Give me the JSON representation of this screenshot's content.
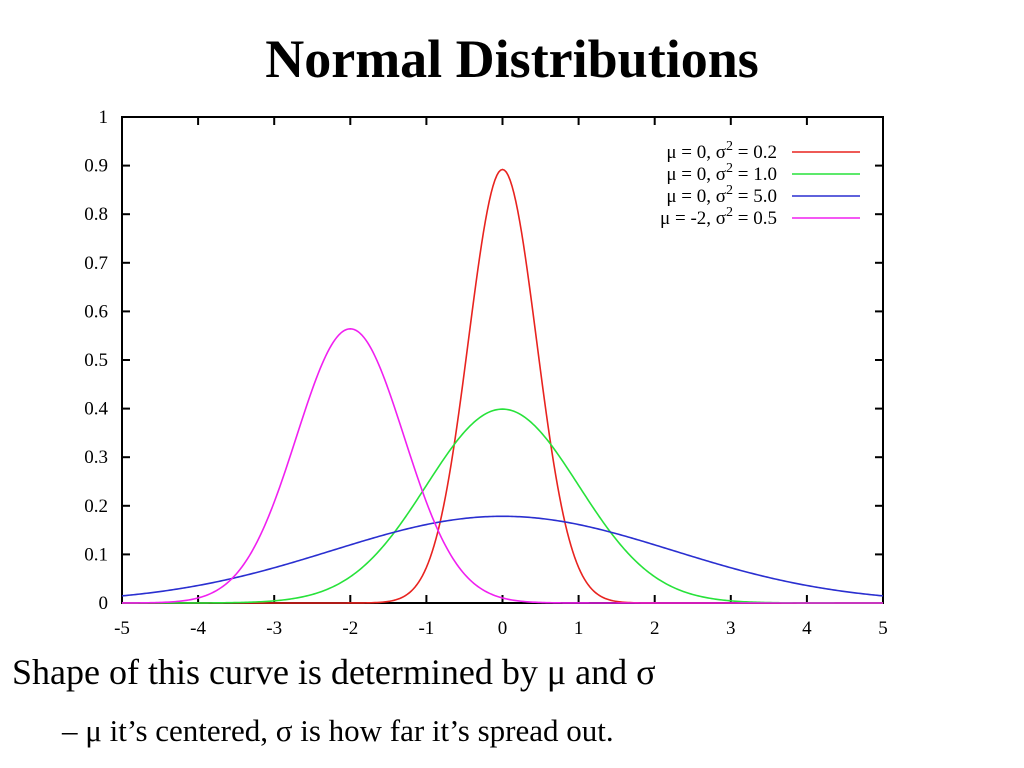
{
  "slide": {
    "title": "Normal Distributions",
    "bullet_main": "Shape of this curve is determined by μ and σ",
    "bullet_sub": "– μ it’s centered, σ is how far it’s spread out."
  },
  "chart_data": {
    "type": "line",
    "title": "",
    "xlabel": "",
    "ylabel": "",
    "xlim": [
      -5,
      5
    ],
    "ylim": [
      0,
      1
    ],
    "x_ticks": [
      "-5",
      "-4",
      "-3",
      "-2",
      "-1",
      "0",
      "1",
      "2",
      "3",
      "4",
      "5"
    ],
    "y_ticks": [
      "0",
      "0.1",
      "0.2",
      "0.3",
      "0.4",
      "0.5",
      "0.6",
      "0.7",
      "0.8",
      "0.9",
      "1"
    ],
    "grid": false,
    "legend_position": "top-right",
    "series": [
      {
        "name_main": "μ =  0, σ",
        "name_sup": "2",
        "name_tail": " = 0.2",
        "mu": 0,
        "sigma2": 0.2,
        "color": "#e8231f",
        "x": [
          -5,
          -4.5,
          -4,
          -3.5,
          -3,
          -2.5,
          -2,
          -1.5,
          -1,
          -0.5,
          0,
          0.5,
          1,
          1.5,
          2,
          2.5,
          3,
          3.5,
          4,
          4.5,
          5
        ],
        "y": [
          0,
          0,
          0,
          0,
          0,
          0,
          0,
          0.0003,
          0.0731,
          0.4849,
          0.8921,
          0.4849,
          0.0731,
          0.0003,
          0,
          0,
          0,
          0,
          0,
          0,
          0
        ]
      },
      {
        "name_main": "μ =  0, σ",
        "name_sup": "2",
        "name_tail": " = 1.0",
        "mu": 0,
        "sigma2": 1.0,
        "color": "#27e23a",
        "x": [
          -5,
          -4.5,
          -4,
          -3.5,
          -3,
          -2.5,
          -2,
          -1.5,
          -1,
          -0.5,
          0,
          0.5,
          1,
          1.5,
          2,
          2.5,
          3,
          3.5,
          4,
          4.5,
          5
        ],
        "y": [
          0,
          0,
          0.0001,
          0.0009,
          0.0044,
          0.0175,
          0.054,
          0.1295,
          0.242,
          0.3521,
          0.3989,
          0.3521,
          0.242,
          0.1295,
          0.054,
          0.0175,
          0.0044,
          0.0009,
          0.0001,
          0,
          0
        ]
      },
      {
        "name_main": "μ =  0, σ",
        "name_sup": "2",
        "name_tail": " = 5.0",
        "mu": 0,
        "sigma2": 5.0,
        "color": "#2a2fd0",
        "x": [
          -5,
          -4.5,
          -4,
          -3.5,
          -3,
          -2.5,
          -2,
          -1.5,
          -1,
          -0.5,
          0,
          0.5,
          1,
          1.5,
          2,
          2.5,
          3,
          3.5,
          4,
          4.5,
          5
        ],
        "y": [
          0.0146,
          0.0235,
          0.0362,
          0.0525,
          0.0724,
          0.0952,
          0.1194,
          0.1427,
          0.1629,
          0.1771,
          0.1784,
          0.1771,
          0.1629,
          0.1427,
          0.1194,
          0.0952,
          0.0724,
          0.0525,
          0.0362,
          0.0235,
          0.0146
        ]
      },
      {
        "name_main": "μ = -2, σ",
        "name_sup": "2",
        "name_tail": " = 0.5",
        "mu": -2,
        "sigma2": 0.5,
        "color": "#f020f0",
        "x": [
          -5,
          -4.5,
          -4,
          -3.5,
          -3,
          -2.5,
          -2,
          -1.5,
          -1,
          -0.5,
          0,
          0.5,
          1,
          1.5,
          2,
          2.5,
          3,
          3.5,
          4,
          4.5,
          5
        ],
        "y": [
          0,
          0.0001,
          0.0103,
          0.0586,
          0.2075,
          0.4394,
          0.5642,
          0.4394,
          0.2075,
          0.0586,
          0.0103,
          0.0011,
          0.0001,
          0,
          0,
          0,
          0,
          0,
          0,
          0,
          0
        ]
      }
    ]
  }
}
